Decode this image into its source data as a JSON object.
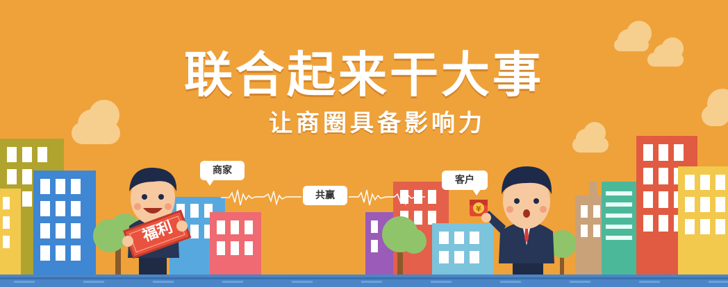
{
  "headline": "联合起来干大事",
  "subheadline": "让商圈具备影响力",
  "labels": {
    "merchant": "商家",
    "win_win": "共赢",
    "customer": "客户"
  },
  "sign_text": "福利",
  "coin_symbol": "¥",
  "colors": {
    "background": "#efa23a",
    "ground": "#4a86c7",
    "text": "#ffffff"
  }
}
